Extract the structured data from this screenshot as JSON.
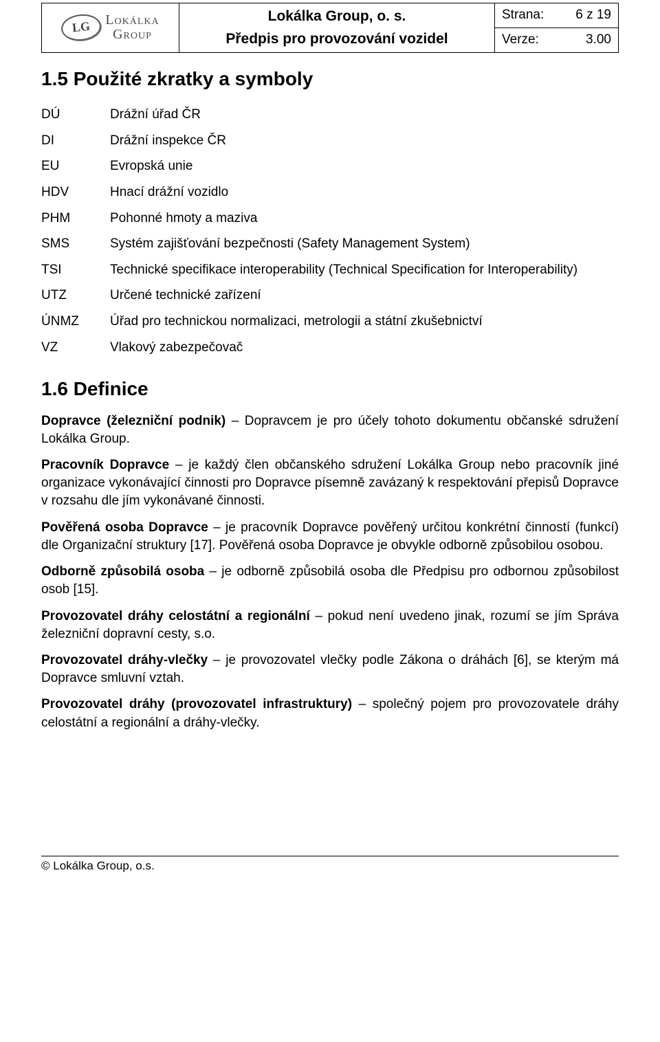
{
  "header": {
    "logo_letters": "LG",
    "logo_line1": "Lokálka",
    "logo_line2": "Group",
    "title1": "Lokálka Group, o. s.",
    "title2": "Předpis pro provozování vozidel",
    "page_label": "Strana:",
    "page_value": "6 z 19",
    "version_label": "Verze:",
    "version_value": "3.00"
  },
  "section1": {
    "heading": "1.5 Použité zkratky a symboly",
    "rows": [
      {
        "abbr": "DÚ",
        "desc": "Drážní úřad ČR"
      },
      {
        "abbr": "DI",
        "desc": "Drážní inspekce ČR"
      },
      {
        "abbr": "EU",
        "desc": "Evropská unie"
      },
      {
        "abbr": "HDV",
        "desc": "Hnací drážní vozidlo"
      },
      {
        "abbr": "PHM",
        "desc": "Pohonné hmoty a maziva"
      },
      {
        "abbr": "SMS",
        "desc": "Systém zajišťování bezpečnosti (Safety Management System)"
      },
      {
        "abbr": "TSI",
        "desc": "Technické specifikace interoperability (Technical Specification for Interoperability)"
      },
      {
        "abbr": "UTZ",
        "desc": "Určené technické zařízení"
      },
      {
        "abbr": "ÚNMZ",
        "desc": "Úřad pro technickou normalizaci, metrologii a státní zkušebnictví"
      },
      {
        "abbr": "VZ",
        "desc": "Vlakový zabezpečovač"
      }
    ]
  },
  "section2": {
    "heading": "1.6 Definice",
    "defs": [
      {
        "term": "Dopravce (železniční podnik)",
        "body": " – Dopravcem je pro účely tohoto dokumentu občanské sdružení Lokálka Group."
      },
      {
        "term": "Pracovník Dopravce",
        "body": " – je každý člen občanského sdružení Lokálka Group nebo pracovník jiné organizace vykonávající činnosti pro Dopravce písemně zavázaný k respektování přepisů Dopravce v rozsahu dle jím vykonávané činnosti."
      },
      {
        "term": "Pověřená osoba Dopravce",
        "body": " – je pracovník Dopravce pověřený určitou konkrétní činností (funkcí) dle Organizační struktury [17]. Pověřená osoba Dopravce je obvykle odborně způsobilou osobou."
      },
      {
        "term": "Odborně způsobilá osoba",
        "body": " – je odborně způsobilá osoba dle Předpisu pro odbornou způsobilost osob [15]."
      },
      {
        "term": "Provozovatel dráhy celostátní a regionální",
        "body": " – pokud není uvedeno jinak, rozumí se jím Správa železniční dopravní cesty, s.o."
      },
      {
        "term": "Provozovatel dráhy-vlečky",
        "body": " – je provozovatel vlečky podle Zákona o dráhách [6], se kterým má Dopravce smluvní vztah."
      },
      {
        "term": "Provozovatel dráhy (provozovatel infrastruktury)",
        "body": " – společný pojem pro provozovatele dráhy celostátní a regionální a dráhy-vlečky."
      }
    ]
  },
  "footer": "© Lokálka Group, o.s."
}
